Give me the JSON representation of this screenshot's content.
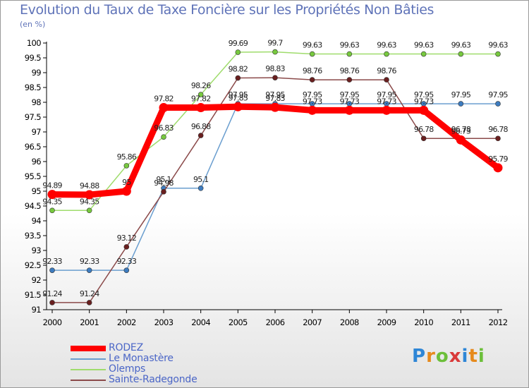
{
  "chart_data": {
    "type": "line",
    "title": "Evolution du Taux de Taxe Foncière sur les Propriétés Non Bâties",
    "subtitle": "(en %)",
    "xlabel": "",
    "ylabel": "(en %)",
    "ylim": [
      91,
      100
    ],
    "yticks": [
      "91",
      "91.5",
      "92",
      "92.5",
      "93",
      "93.5",
      "94",
      "94.5",
      "95",
      "95.5",
      "96",
      "96.5",
      "97",
      "97.5",
      "98",
      "98.5",
      "99",
      "99.5",
      "100"
    ],
    "x": [
      "2000",
      "2001",
      "2002",
      "2003",
      "2004",
      "2005",
      "2006",
      "2007",
      "2008",
      "2009",
      "2010",
      "2011",
      "2012"
    ],
    "series": [
      {
        "name": "Le Monastère",
        "color": "#6a9ecf",
        "marker_color": "#3d7cc0",
        "values": [
          92.33,
          92.33,
          92.33,
          95.1,
          95.1,
          97.95,
          97.95,
          97.95,
          97.95,
          97.95,
          97.95,
          97.95,
          97.95
        ],
        "labels": [
          "92.33",
          "92.33",
          "92.33",
          "95.1",
          "95.1",
          "97.95",
          "97.95",
          "97.95",
          "97.95",
          "97.95",
          "97.95",
          "97.95",
          "97.95"
        ]
      },
      {
        "name": "Olemps",
        "color": "#9fdc6c",
        "marker_color": "#77c93e",
        "values": [
          94.35,
          94.35,
          95.86,
          96.83,
          98.26,
          99.69,
          99.7,
          99.63,
          99.63,
          99.63,
          99.63,
          99.63,
          99.63
        ],
        "labels": [
          "94.35",
          "94.35",
          "95.86",
          "96.83",
          "98.26",
          "99.69",
          "99.7",
          "99.63",
          "99.63",
          "99.63",
          "99.63",
          "99.63",
          "99.63"
        ]
      },
      {
        "name": "Sainte-Radegonde",
        "color": "#8b4a4a",
        "marker_color": "#6a1f1f",
        "values": [
          91.24,
          91.24,
          93.12,
          94.98,
          96.88,
          98.82,
          98.83,
          98.76,
          98.76,
          98.76,
          96.78,
          96.78,
          96.78
        ],
        "labels": [
          "91.24",
          "91.24",
          "93.12",
          "94.98",
          "96.88",
          "98.82",
          "98.83",
          "98.76",
          "98.76",
          "98.76",
          "96.78",
          "96.78",
          "96.78"
        ]
      },
      {
        "name": "RODEZ",
        "color": "#ff0000",
        "marker_color": "#ff0000",
        "values": [
          94.89,
          94.88,
          95,
          97.82,
          97.82,
          97.85,
          97.83,
          97.73,
          97.73,
          97.73,
          97.73,
          96.73,
          95.79
        ],
        "labels": [
          "94.89",
          "94.88",
          "95",
          "97.82",
          "97.82",
          "97.85",
          "97.83",
          "97.73",
          "97.73",
          "97.73",
          "97.73",
          "96.73",
          "95.79"
        ]
      }
    ],
    "legend": {
      "placement": "bottom-left",
      "entries": [
        "RODEZ",
        "Le Monastère",
        "Olemps",
        "Sainte-Radegonde"
      ]
    },
    "grid": false
  },
  "branding": {
    "logo_letters": [
      "P",
      "r",
      "o",
      "x",
      "i",
      "t",
      "i"
    ]
  }
}
